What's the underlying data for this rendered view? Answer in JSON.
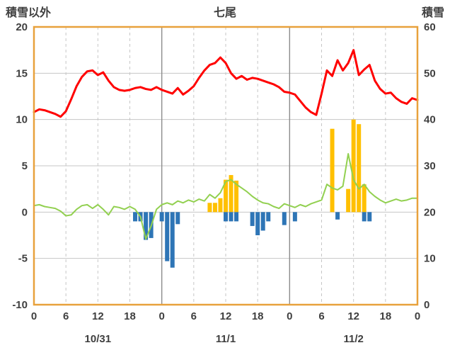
{
  "header": {
    "left_label": "積雪以外",
    "station": "七尾",
    "right_label": "積雪"
  },
  "colors": {
    "frame": "#E8A13C",
    "grid": "#C6C6C6",
    "day_grid": "#8C8C8C",
    "text": "#3F3F3F",
    "temperature": "#FF0000",
    "green_line": "#92D050",
    "orange_bar": "#FFC000",
    "blue_bar": "#2E75B6"
  },
  "chart_data": {
    "type": "combo-line-bar",
    "title": "七尾",
    "left_axis": {
      "label": "積雪以外",
      "min": -10,
      "max": 20,
      "ticks": [
        "20",
        "15",
        "10",
        "5",
        "0",
        "-5",
        "-10"
      ]
    },
    "right_axis": {
      "label": "積雪",
      "min": 0,
      "max": 60,
      "ticks": [
        "60",
        "50",
        "40",
        "30",
        "20",
        "10",
        "0"
      ]
    },
    "x_axis": {
      "total_hours": 72,
      "tick_interval_hours": 6,
      "tick_labels": [
        "0",
        "6",
        "12",
        "18",
        "0",
        "6",
        "12",
        "18",
        "0",
        "6",
        "12",
        "18",
        "0"
      ],
      "day_labels": [
        "10/31",
        "11/1",
        "11/2"
      ],
      "day_boundaries_hours": [
        24,
        48
      ],
      "grid": "on"
    },
    "series": [
      {
        "name": "temperature-line",
        "type": "line",
        "axis": "left",
        "color": "#FF0000",
        "width": 3,
        "values": [
          10.8,
          11.1,
          11.0,
          10.8,
          10.6,
          10.3,
          10.9,
          12.2,
          13.6,
          14.6,
          15.2,
          15.3,
          14.8,
          15.1,
          14.2,
          13.5,
          13.2,
          13.1,
          13.2,
          13.4,
          13.5,
          13.3,
          13.2,
          13.5,
          13.2,
          13.0,
          12.8,
          13.4,
          12.7,
          13.1,
          13.6,
          14.5,
          15.3,
          15.9,
          16.1,
          16.7,
          16.1,
          15.0,
          14.4,
          14.7,
          14.3,
          14.5,
          14.4,
          14.2,
          14.0,
          13.8,
          13.5,
          13.0,
          12.9,
          12.7,
          12.0,
          11.3,
          10.8,
          10.5,
          12.8,
          15.3,
          14.7,
          16.4,
          15.3,
          16.1,
          17.5,
          14.8,
          15.4,
          15.9,
          14.2,
          13.3,
          12.8,
          12.9,
          12.3,
          11.9,
          11.7,
          12.3,
          12.1
        ]
      },
      {
        "name": "green-line",
        "type": "line",
        "axis": "left",
        "color": "#92D050",
        "width": 2,
        "values": [
          0.7,
          0.8,
          0.6,
          0.5,
          0.4,
          0.1,
          -0.4,
          -0.3,
          0.3,
          0.7,
          0.8,
          0.4,
          0.8,
          0.3,
          -0.3,
          0.6,
          0.5,
          0.3,
          0.6,
          0.3,
          -0.5,
          -2.9,
          -1.5,
          0.3,
          0.8,
          1.0,
          0.8,
          1.2,
          1.0,
          1.3,
          1.1,
          1.4,
          1.2,
          1.9,
          1.5,
          2.1,
          3.3,
          3.5,
          3.0,
          2.6,
          2.2,
          1.7,
          1.3,
          1.0,
          0.9,
          0.6,
          0.4,
          0.9,
          0.7,
          0.5,
          0.8,
          0.6,
          0.9,
          1.1,
          1.3,
          3.0,
          2.6,
          2.4,
          2.8,
          6.3,
          3.5,
          2.5,
          3.0,
          2.2,
          1.7,
          1.3,
          1.0,
          1.2,
          1.4,
          1.2,
          1.3,
          1.5,
          1.5
        ]
      },
      {
        "name": "orange-bars",
        "type": "bar",
        "axis": "left",
        "color": "#FFC000",
        "points": [
          [
            33,
            1.0
          ],
          [
            34,
            1.0
          ],
          [
            35,
            1.5
          ],
          [
            36,
            3.5
          ],
          [
            37,
            4.0
          ],
          [
            38,
            3.4
          ],
          [
            56,
            9.0
          ],
          [
            59,
            2.5
          ],
          [
            60,
            10.0
          ],
          [
            61,
            9.5
          ],
          [
            62,
            3.0
          ]
        ]
      },
      {
        "name": "blue-bars",
        "type": "bar",
        "axis": "left",
        "color": "#2E75B6",
        "points": [
          [
            19,
            -1.0
          ],
          [
            20,
            -1.0
          ],
          [
            21,
            -3.0
          ],
          [
            22,
            -2.8
          ],
          [
            24,
            -1.0
          ],
          [
            25,
            -5.3
          ],
          [
            26,
            -6.0
          ],
          [
            27,
            -1.3
          ],
          [
            36,
            -1.0
          ],
          [
            37,
            -1.0
          ],
          [
            38,
            -1.0
          ],
          [
            41,
            -1.5
          ],
          [
            42,
            -2.5
          ],
          [
            43,
            -2.0
          ],
          [
            44,
            -1.0
          ],
          [
            47,
            -1.4
          ],
          [
            49,
            -1.0
          ],
          [
            57,
            -0.8
          ],
          [
            62,
            -1.0
          ],
          [
            63,
            -1.0
          ]
        ]
      }
    ]
  }
}
